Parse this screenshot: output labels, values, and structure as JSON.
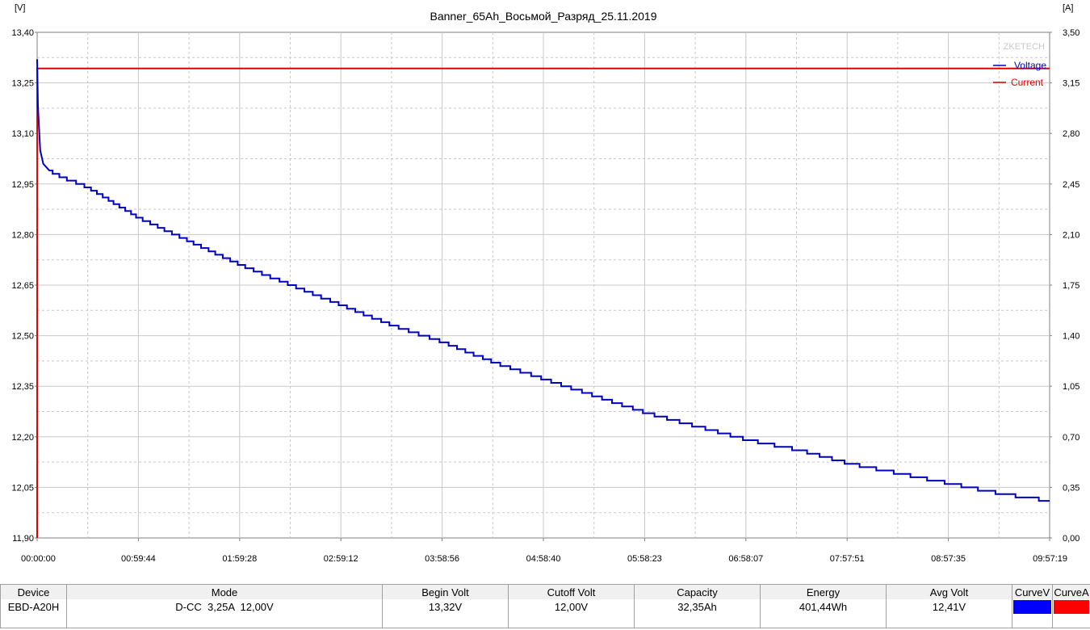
{
  "chart_data": {
    "type": "line",
    "title": "Banner_65Ah_Восьмой_Разряд_25.11.2019",
    "watermark": "ZKETECH",
    "left_unit": "[V]",
    "right_unit": "[A]",
    "left_axis": {
      "min": 11.9,
      "max": 13.4,
      "ticks": [
        "13,40",
        "13,25",
        "13,10",
        "12,95",
        "12,80",
        "12,65",
        "12,50",
        "12,35",
        "12,20",
        "12,05",
        "11,90"
      ]
    },
    "right_axis": {
      "min": 0.0,
      "max": 3.5,
      "ticks": [
        "3,50",
        "3,15",
        "2,80",
        "2,45",
        "2,10",
        "1,75",
        "1,40",
        "1,05",
        "0,70",
        "0,35",
        "0,00"
      ]
    },
    "x_ticks": [
      "00:00:00",
      "00:59:44",
      "01:59:28",
      "02:59:12",
      "03:58:56",
      "04:58:40",
      "05:58:23",
      "06:58:07",
      "07:57:51",
      "08:57:35",
      "09:57:19"
    ],
    "x_max_hours": 9.955,
    "legend_position": "top-right",
    "grid": true,
    "series": [
      {
        "name": "Voltage",
        "axis": "left",
        "color": "#0000c0",
        "x": [
          0,
          0.008,
          0.03,
          0.06,
          0.12,
          0.25,
          0.5,
          1.0,
          1.5,
          2.0,
          2.5,
          3.0,
          3.5,
          4.0,
          4.5,
          5.0,
          5.5,
          6.0,
          6.5,
          7.0,
          7.5,
          8.0,
          8.5,
          9.0,
          9.5,
          9.955
        ],
        "y": [
          13.32,
          13.18,
          13.05,
          13.01,
          12.99,
          12.97,
          12.94,
          12.85,
          12.78,
          12.71,
          12.65,
          12.59,
          12.53,
          12.48,
          12.42,
          12.37,
          12.32,
          12.27,
          12.23,
          12.19,
          12.16,
          12.12,
          12.09,
          12.06,
          12.03,
          12.01
        ]
      },
      {
        "name": "Current",
        "axis": "right",
        "color": "#e00000",
        "x": [
          0,
          0.001,
          9.955
        ],
        "y": [
          0.0,
          3.25,
          3.25
        ]
      }
    ]
  },
  "table": {
    "headers": [
      "Device",
      "Mode",
      "Begin Volt",
      "Cutoff Volt",
      "Capacity",
      "Energy",
      "Avg Volt",
      "CurveV",
      "CurveA"
    ],
    "row": [
      "EBD-A20H",
      "D-CC  3,25A  12,00V",
      "13,32V",
      "12,00V",
      "32,35Ah",
      "401,44Wh",
      "12,41V"
    ],
    "curve_colors": [
      "#0000ff",
      "#ff0000"
    ]
  }
}
